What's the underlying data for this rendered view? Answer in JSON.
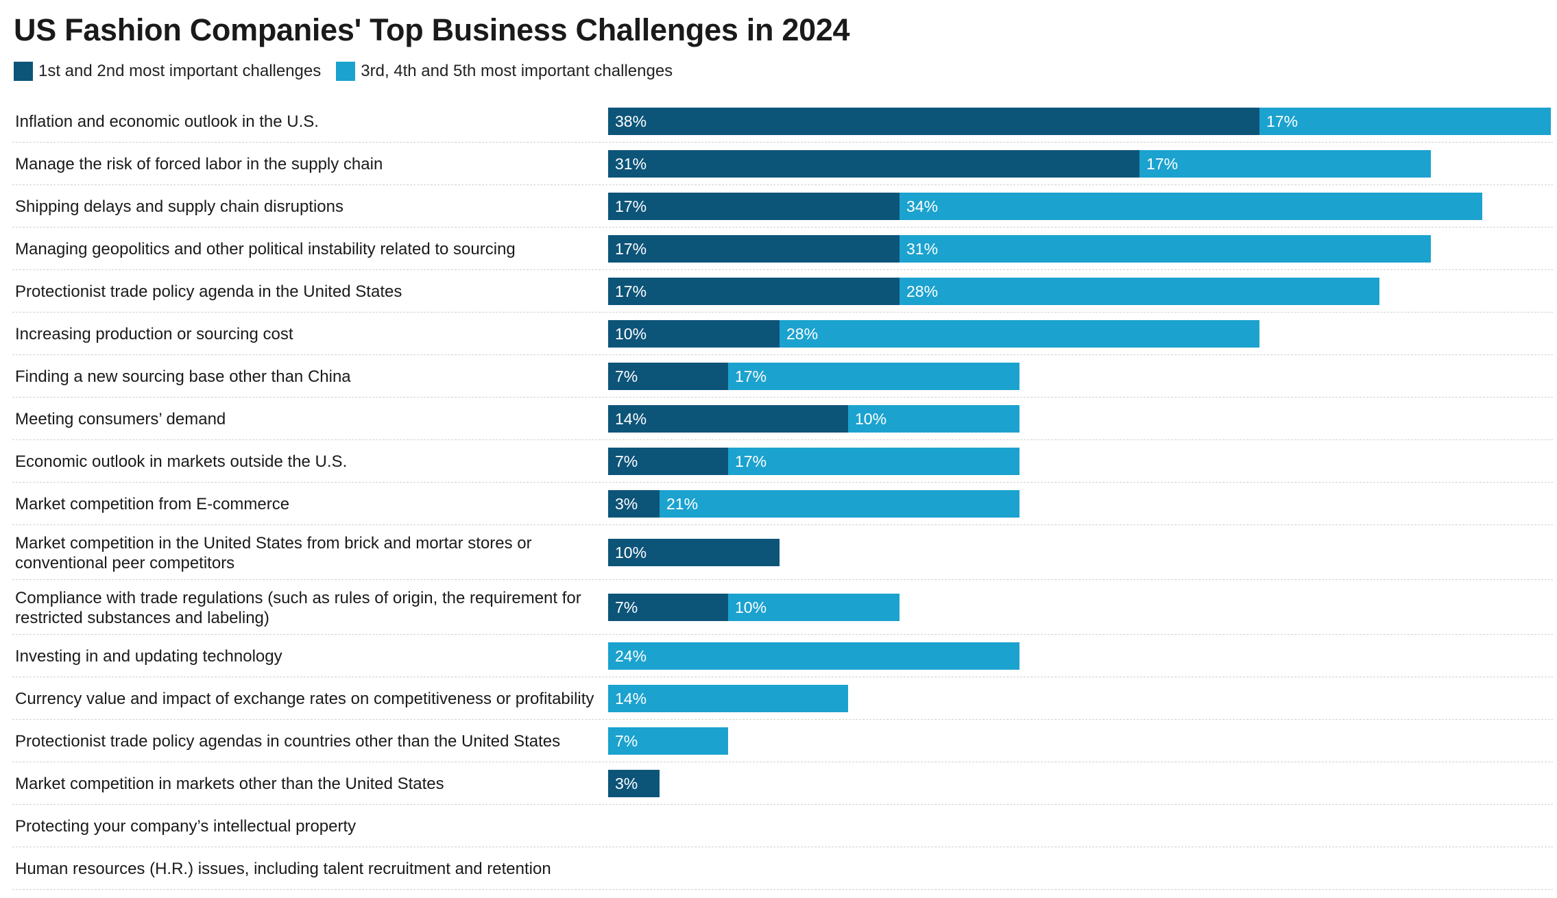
{
  "colors": {
    "primary": "#0d5479",
    "secondary": "#1ba2cf",
    "grid": "#d7d7d7"
  },
  "chart_data": {
    "type": "bar",
    "orientation": "horizontal",
    "stacked": true,
    "title": "US Fashion Companies' Top Business Challenges in 2024",
    "legend_position": "top-left",
    "xlim": [
      0,
      55
    ],
    "series": [
      {
        "name": "1st and 2nd most important challenges",
        "color": "#0d5479",
        "values": [
          38,
          31,
          17,
          17,
          17,
          10,
          7,
          14,
          7,
          3,
          10,
          7,
          0,
          0,
          0,
          3,
          0,
          0
        ]
      },
      {
        "name": "3rd, 4th and 5th most important challenges",
        "color": "#1ba2cf",
        "values": [
          17,
          17,
          34,
          31,
          28,
          28,
          17,
          10,
          17,
          21,
          0,
          10,
          24,
          14,
          7,
          0,
          0,
          0
        ]
      }
    ],
    "categories": [
      [
        "Inflation and economic outlook in the U.S."
      ],
      [
        "Manage the risk of forced labor in the supply chain"
      ],
      [
        "Shipping delays and supply chain disruptions"
      ],
      [
        "Managing geopolitics and other political instability related to sourcing"
      ],
      [
        "Protectionist trade policy agenda in the United States"
      ],
      [
        "Increasing production or sourcing cost"
      ],
      [
        "Finding a new sourcing base other than China"
      ],
      [
        "Meeting consumers’ demand"
      ],
      [
        "Economic outlook in markets outside the U.S."
      ],
      [
        "Market competition from E-commerce"
      ],
      [
        "Market competition in the United States from brick and mortar stores or",
        "conventional peer competitors"
      ],
      [
        "Compliance with trade regulations (such as rules of origin, the requirement for",
        "restricted substances and labeling)"
      ],
      [
        "Investing in and updating technology"
      ],
      [
        "Currency value and impact of exchange rates on competitiveness or profitability"
      ],
      [
        "Protectionist trade policy agendas in countries other than the United States"
      ],
      [
        "Market competition in markets other than the United States"
      ],
      [
        "Protecting your company’s intellectual property"
      ],
      [
        "Human resources (H.R.) issues, including talent recruitment and retention"
      ]
    ]
  }
}
